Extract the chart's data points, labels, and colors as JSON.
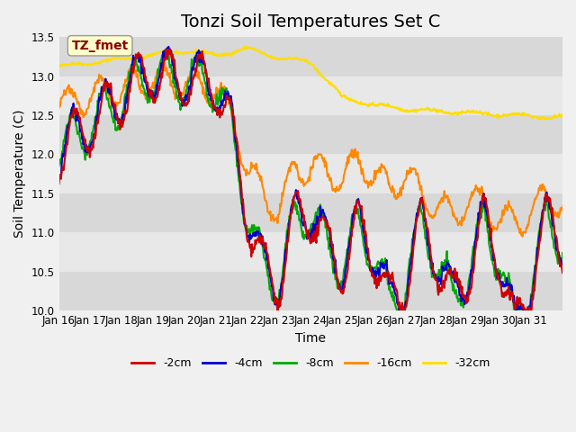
{
  "title": "Tonzi Soil Temperatures Set C",
  "xlabel": "Time",
  "ylabel": "Soil Temperature (C)",
  "ylim": [
    10.0,
    13.5
  ],
  "annotation": "TZ_fmet",
  "bg_color": "#f0f0f0",
  "plot_bg_color": "#e8e8e8",
  "series": [
    {
      "label": "-2cm",
      "color": "#cc0000",
      "lw": 1.5
    },
    {
      "label": "-4cm",
      "color": "#0000cc",
      "lw": 1.5
    },
    {
      "label": "-8cm",
      "color": "#00aa00",
      "lw": 1.5
    },
    {
      "label": "-16cm",
      "color": "#ff8800",
      "lw": 1.5
    },
    {
      "label": "-32cm",
      "color": "#ffdd00",
      "lw": 1.5
    }
  ],
  "xtick_labels": [
    "Jan 16",
    "Jan 17",
    "Jan 18",
    "Jan 19",
    "Jan 20",
    "Jan 21",
    "Jan 22",
    "Jan 23",
    "Jan 24",
    "Jan 25",
    "Jan 26",
    "Jan 27",
    "Jan 28",
    "Jan 29",
    "Jan 30",
    "Jan 31"
  ],
  "yticks": [
    10.0,
    10.5,
    11.0,
    11.5,
    12.0,
    12.5,
    13.0,
    13.5
  ],
  "title_fontsize": 14,
  "label_fontsize": 10,
  "tick_fontsize": 8.5
}
